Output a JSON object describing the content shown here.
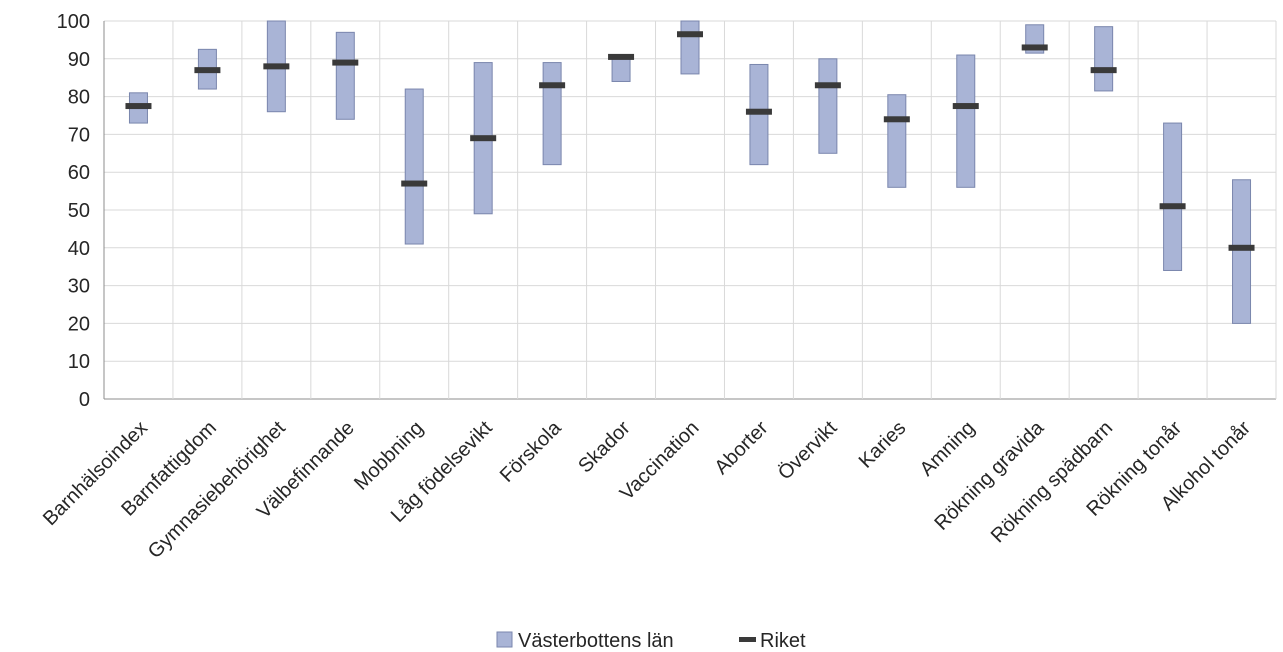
{
  "chart_data": {
    "type": "range-bar",
    "categories": [
      "Barnhälsoindex",
      "Barnfattigdom",
      "Gymnasiebehörighet",
      "Välbefinnande",
      "Mobbning",
      "Låg födelsevikt",
      "Förskola",
      "Skador",
      "Vaccination",
      "Aborter",
      "Övervikt",
      "Karies",
      "Amning",
      "Rökning gravida",
      "Rökning spädbarn",
      "Rökning tonår",
      "Alkohol tonår"
    ],
    "series": [
      {
        "name": "Västerbottens län",
        "kind": "range",
        "color": "#a9b4d6",
        "low": [
          73,
          82,
          76,
          74,
          41,
          49,
          62,
          84,
          86,
          62,
          65,
          56,
          56,
          91.5,
          81.5,
          34,
          20
        ],
        "high": [
          81,
          92.5,
          100,
          97,
          82,
          89,
          89,
          91,
          100,
          88.5,
          90,
          80.5,
          91,
          99,
          98.5,
          73,
          58
        ]
      },
      {
        "name": "Riket",
        "kind": "marker",
        "color": "#3a3a3a",
        "values": [
          77.5,
          87,
          88,
          89,
          57,
          69,
          83,
          90.5,
          96.5,
          76,
          83,
          74,
          77.5,
          93,
          87,
          51,
          40
        ]
      }
    ],
    "ylim": [
      0,
      100
    ],
    "yticks": [
      "0",
      "10",
      "20",
      "30",
      "40",
      "50",
      "60",
      "70",
      "80",
      "90",
      "100"
    ],
    "grid": true,
    "legend_position": "bottom"
  }
}
